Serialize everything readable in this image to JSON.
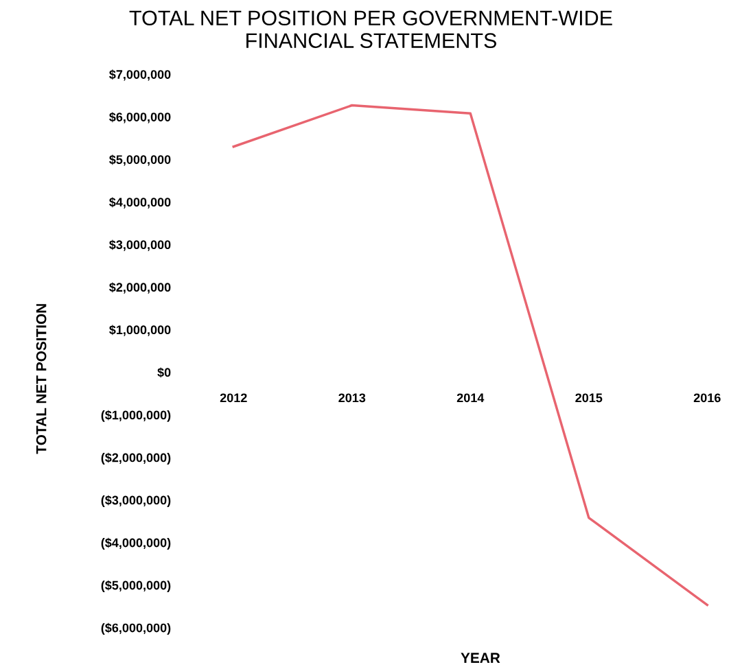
{
  "chart_data": {
    "type": "line",
    "title": "TOTAL NET POSITION PER GOVERNMENT-WIDE\nFINANCIAL STATEMENTS",
    "xlabel": "YEAR",
    "ylabel": "TOTAL NET POSITION",
    "categories": [
      "2012",
      "2013",
      "2014",
      "2015",
      "2016"
    ],
    "series": [
      {
        "color": "#e8646f",
        "values": [
          5300000,
          6270000,
          6080000,
          -3420000,
          -5470000
        ]
      }
    ],
    "ylim": [
      -6000000,
      7000000
    ],
    "yticks": [
      {
        "value": 7000000,
        "label": "$7,000,000"
      },
      {
        "value": 6000000,
        "label": "$6,000,000"
      },
      {
        "value": 5000000,
        "label": "$5,000,000"
      },
      {
        "value": 4000000,
        "label": "$4,000,000"
      },
      {
        "value": 3000000,
        "label": "$3,000,000"
      },
      {
        "value": 2000000,
        "label": "$2,000,000"
      },
      {
        "value": 1000000,
        "label": "$1,000,000"
      },
      {
        "value": 0,
        "label": "$0"
      },
      {
        "value": -1000000,
        "label": "($1,000,000)"
      },
      {
        "value": -2000000,
        "label": "($2,000,000)"
      },
      {
        "value": -3000000,
        "label": "($3,000,000)"
      },
      {
        "value": -4000000,
        "label": "($4,000,000)"
      },
      {
        "value": -5000000,
        "label": "($5,000,000)"
      },
      {
        "value": -6000000,
        "label": "($6,000,000)"
      }
    ],
    "grid": false,
    "legend": false,
    "marker": "none",
    "line_style": "solid"
  }
}
